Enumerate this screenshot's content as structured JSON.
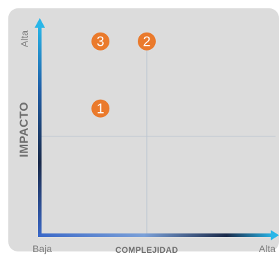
{
  "chart_data": {
    "type": "scatter",
    "title": "",
    "xlabel": "COMPLEJIDAD",
    "ylabel": "IMPACTO",
    "x_ticks": {
      "low": "Baja",
      "high": "Alta"
    },
    "y_ticks": {
      "low": "",
      "high": "Alta"
    },
    "xlim": [
      0,
      10
    ],
    "ylim": [
      0,
      10
    ],
    "quadrant_divider": {
      "x": 5,
      "y": 5
    },
    "points": [
      {
        "label": "1",
        "x": 2.8,
        "y": 6.4
      },
      {
        "label": "2",
        "x": 5.0,
        "y": 9.8
      },
      {
        "label": "3",
        "x": 2.8,
        "y": 9.8
      }
    ],
    "grid": false,
    "legend": "none",
    "colors": {
      "background": "#dcdcdc",
      "bubble": "#ea7a2c",
      "divider": "#b9c3cf",
      "axis_dark": "#1a2a4a",
      "axis_light": "#29b6e8",
      "axis_mid": "#3a68c8"
    }
  }
}
